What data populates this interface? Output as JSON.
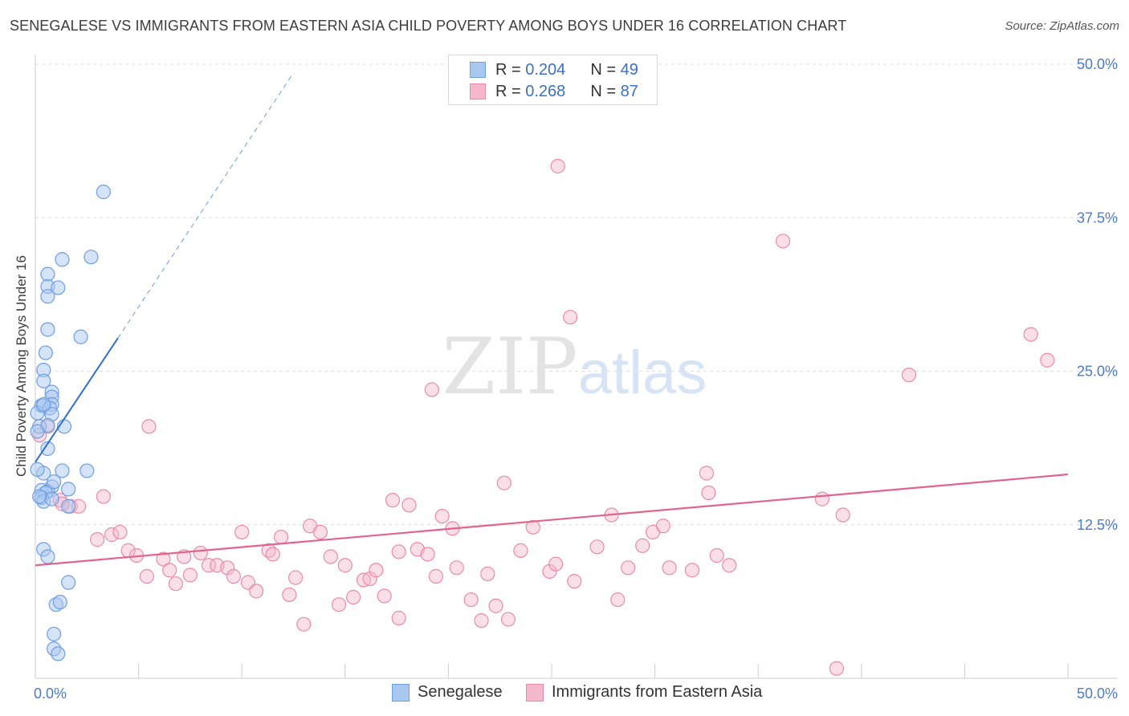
{
  "title": "SENEGALESE VS IMMIGRANTS FROM EASTERN ASIA CHILD POVERTY AMONG BOYS UNDER 16 CORRELATION CHART",
  "source": "Source: ZipAtlas.com",
  "watermark": {
    "zip": "ZIP",
    "atlas": "atlas"
  },
  "legend": {
    "rows": [
      {
        "r_label": "R =",
        "r_value": "0.204",
        "n_label": "N =",
        "n_value": "49"
      },
      {
        "r_label": "R =",
        "r_value": "0.268",
        "n_label": "N =",
        "n_value": "87"
      }
    ]
  },
  "bottom_legend": {
    "series1": "Senegalese",
    "series2": "Immigrants from Eastern Asia"
  },
  "colors": {
    "blue_fill": "#a9c8f0",
    "blue_stroke": "#6f9ee0",
    "blue_line": "#2f6fd0",
    "pink_fill": "#f5b8cc",
    "pink_stroke": "#e98aab",
    "pink_line": "#e0648f",
    "grid": "#dddddd",
    "axis_text": "#4a7cc7"
  },
  "chart_data": {
    "type": "scatter",
    "title": "SENEGALESE VS IMMIGRANTS FROM EASTERN ASIA CHILD POVERTY AMONG BOYS UNDER 16 CORRELATION CHART",
    "xlabel": "",
    "ylabel": "Child Poverty Among Boys Under 16",
    "xlim": [
      0,
      50
    ],
    "ylim": [
      0,
      50
    ],
    "x_tick_labels": [
      "0.0%",
      "50.0%"
    ],
    "y_tick_labels": [
      "12.5%",
      "25.0%",
      "37.5%",
      "50.0%"
    ],
    "y_ticks": [
      12.5,
      25.0,
      37.5,
      50.0
    ],
    "series": [
      {
        "name": "Senegalese",
        "R": 0.204,
        "N": 49,
        "trend": {
          "x": [
            0.0,
            4.0
          ],
          "y": [
            17.6,
            27.7
          ],
          "dashed_to": [
            12.5,
            49.3
          ]
        },
        "points": [
          [
            3.3,
            39.6
          ],
          [
            1.3,
            34.1
          ],
          [
            2.7,
            34.3
          ],
          [
            0.6,
            32.9
          ],
          [
            0.6,
            31.9
          ],
          [
            1.1,
            31.8
          ],
          [
            0.6,
            31.1
          ],
          [
            2.2,
            27.8
          ],
          [
            0.6,
            28.4
          ],
          [
            0.5,
            26.5
          ],
          [
            0.4,
            25.1
          ],
          [
            0.4,
            24.2
          ],
          [
            0.8,
            23.3
          ],
          [
            0.8,
            22.9
          ],
          [
            0.3,
            22.2
          ],
          [
            0.4,
            22.2
          ],
          [
            0.8,
            22.3
          ],
          [
            0.7,
            22.0
          ],
          [
            0.1,
            21.6
          ],
          [
            0.8,
            21.5
          ],
          [
            0.2,
            20.5
          ],
          [
            0.6,
            20.6
          ],
          [
            1.4,
            20.5
          ],
          [
            0.1,
            20.1
          ],
          [
            0.6,
            18.7
          ],
          [
            0.4,
            16.7
          ],
          [
            2.5,
            16.9
          ],
          [
            1.3,
            16.9
          ],
          [
            0.8,
            15.6
          ],
          [
            0.3,
            15.3
          ],
          [
            0.6,
            15.2
          ],
          [
            0.5,
            15.1
          ],
          [
            1.6,
            15.4
          ],
          [
            0.3,
            14.7
          ],
          [
            0.4,
            14.4
          ],
          [
            0.8,
            14.6
          ],
          [
            1.6,
            14.0
          ],
          [
            0.4,
            10.5
          ],
          [
            0.6,
            9.9
          ],
          [
            1.6,
            7.8
          ],
          [
            1.0,
            6.0
          ],
          [
            1.2,
            6.2
          ],
          [
            0.9,
            3.6
          ],
          [
            0.9,
            2.4
          ],
          [
            1.1,
            2.0
          ],
          [
            0.2,
            14.8
          ],
          [
            0.1,
            17.0
          ],
          [
            0.9,
            16.0
          ],
          [
            0.4,
            22.3
          ]
        ]
      },
      {
        "name": "Immigrants from Eastern Asia",
        "R": 0.268,
        "N": 87,
        "trend": {
          "x": [
            0.0,
            50.0
          ],
          "y": [
            9.2,
            16.6
          ]
        },
        "points": [
          [
            25.3,
            41.7
          ],
          [
            36.2,
            35.6
          ],
          [
            25.9,
            29.4
          ],
          [
            48.2,
            28.0
          ],
          [
            49.0,
            25.9
          ],
          [
            42.3,
            24.7
          ],
          [
            19.2,
            23.5
          ],
          [
            5.5,
            20.5
          ],
          [
            1.2,
            14.5
          ],
          [
            0.2,
            19.8
          ],
          [
            0.6,
            20.5
          ],
          [
            1.7,
            14.0
          ],
          [
            1.3,
            14.2
          ],
          [
            2.1,
            14.0
          ],
          [
            3.3,
            14.8
          ],
          [
            3.0,
            11.3
          ],
          [
            3.7,
            11.7
          ],
          [
            4.1,
            11.9
          ],
          [
            4.5,
            10.4
          ],
          [
            4.9,
            10.0
          ],
          [
            5.4,
            8.3
          ],
          [
            6.2,
            9.7
          ],
          [
            6.5,
            8.8
          ],
          [
            6.8,
            7.7
          ],
          [
            7.2,
            9.9
          ],
          [
            7.5,
            8.4
          ],
          [
            8.0,
            10.2
          ],
          [
            8.4,
            9.2
          ],
          [
            8.8,
            9.2
          ],
          [
            9.3,
            9.0
          ],
          [
            9.6,
            8.3
          ],
          [
            10.0,
            11.9
          ],
          [
            10.3,
            7.8
          ],
          [
            10.7,
            7.1
          ],
          [
            11.3,
            10.4
          ],
          [
            11.5,
            10.1
          ],
          [
            11.9,
            11.5
          ],
          [
            12.3,
            6.8
          ],
          [
            12.6,
            8.2
          ],
          [
            13.0,
            4.4
          ],
          [
            13.3,
            12.4
          ],
          [
            13.8,
            11.9
          ],
          [
            14.3,
            9.9
          ],
          [
            14.7,
            6.0
          ],
          [
            15.0,
            9.2
          ],
          [
            15.4,
            6.6
          ],
          [
            15.9,
            8.0
          ],
          [
            16.2,
            8.1
          ],
          [
            16.5,
            8.8
          ],
          [
            16.9,
            6.7
          ],
          [
            17.3,
            14.5
          ],
          [
            17.6,
            4.9
          ],
          [
            18.1,
            14.1
          ],
          [
            18.5,
            10.5
          ],
          [
            19.0,
            10.1
          ],
          [
            19.4,
            8.3
          ],
          [
            19.7,
            13.2
          ],
          [
            20.2,
            12.2
          ],
          [
            20.4,
            9.0
          ],
          [
            21.1,
            6.4
          ],
          [
            21.6,
            4.7
          ],
          [
            21.9,
            8.5
          ],
          [
            22.3,
            5.9
          ],
          [
            22.7,
            15.9
          ],
          [
            22.9,
            4.8
          ],
          [
            23.5,
            10.4
          ],
          [
            24.1,
            12.3
          ],
          [
            24.9,
            8.7
          ],
          [
            25.2,
            9.3
          ],
          [
            26.1,
            7.9
          ],
          [
            27.2,
            10.7
          ],
          [
            27.9,
            13.3
          ],
          [
            28.2,
            6.4
          ],
          [
            28.7,
            9.0
          ],
          [
            29.4,
            10.8
          ],
          [
            29.9,
            11.9
          ],
          [
            30.4,
            12.4
          ],
          [
            30.7,
            9.0
          ],
          [
            31.8,
            8.8
          ],
          [
            32.5,
            16.7
          ],
          [
            32.6,
            15.1
          ],
          [
            33.0,
            10.0
          ],
          [
            33.6,
            9.2
          ],
          [
            38.1,
            14.6
          ],
          [
            39.1,
            13.3
          ],
          [
            38.8,
            0.8
          ],
          [
            17.6,
            10.3
          ]
        ]
      }
    ]
  }
}
